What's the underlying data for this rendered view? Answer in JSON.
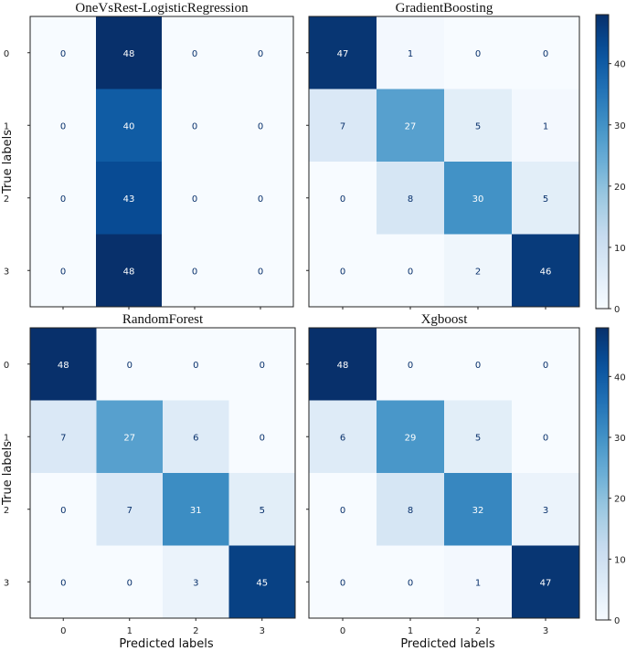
{
  "chart_data": {
    "type": "heatmap",
    "colormap": "Blues",
    "xlabel": "Predicted labels",
    "ylabel": "True labels",
    "class_labels": [
      "0",
      "1",
      "2",
      "3"
    ],
    "panels": [
      {
        "title": "OneVsRest-LogisticRegression",
        "matrix": [
          [
            0,
            48,
            0,
            0
          ],
          [
            0,
            40,
            0,
            0
          ],
          [
            0,
            43,
            0,
            0
          ],
          [
            0,
            48,
            0,
            0
          ]
        ]
      },
      {
        "title": "GradientBoosting",
        "matrix": [
          [
            47,
            1,
            0,
            0
          ],
          [
            7,
            27,
            5,
            1
          ],
          [
            0,
            8,
            30,
            5
          ],
          [
            0,
            0,
            2,
            46
          ]
        ]
      },
      {
        "title": "RandomForest",
        "matrix": [
          [
            48,
            0,
            0,
            0
          ],
          [
            7,
            27,
            6,
            0
          ],
          [
            0,
            7,
            31,
            5
          ],
          [
            0,
            0,
            3,
            45
          ]
        ]
      },
      {
        "title": "Xgboost",
        "matrix": [
          [
            48,
            0,
            0,
            0
          ],
          [
            6,
            29,
            5,
            0
          ],
          [
            0,
            8,
            32,
            3
          ],
          [
            0,
            0,
            1,
            47
          ]
        ]
      }
    ],
    "colorbars": [
      {
        "range": [
          0,
          48
        ],
        "ticks": [
          0,
          10,
          20,
          30,
          40
        ]
      },
      {
        "range": [
          0,
          48
        ],
        "ticks": [
          0,
          10,
          20,
          30,
          40
        ]
      }
    ]
  }
}
